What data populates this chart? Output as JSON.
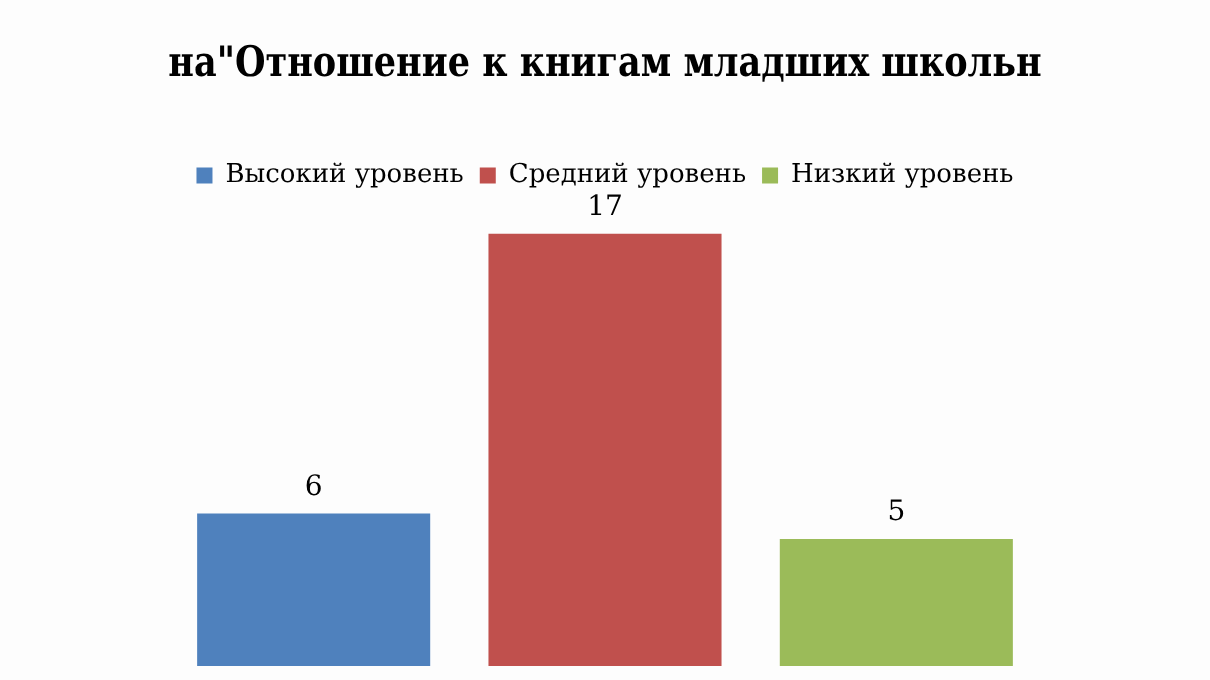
{
  "chart_data": {
    "type": "bar",
    "title": "на\"Отношение к книгам младших школьн",
    "categories": [
      null,
      null,
      null
    ],
    "series": [
      {
        "name": "Высокий уровень",
        "color": "#4f81bd",
        "values": [
          6,
          null,
          null
        ]
      },
      {
        "name": "Средний уровень",
        "color": "#c0504d",
        "values": [
          null,
          17,
          null
        ]
      },
      {
        "name": "Низкий уровень",
        "color": "#9bbb59",
        "values": [
          null,
          null,
          5
        ]
      }
    ],
    "stacked": true,
    "data_labels": true,
    "legend": "top"
  }
}
